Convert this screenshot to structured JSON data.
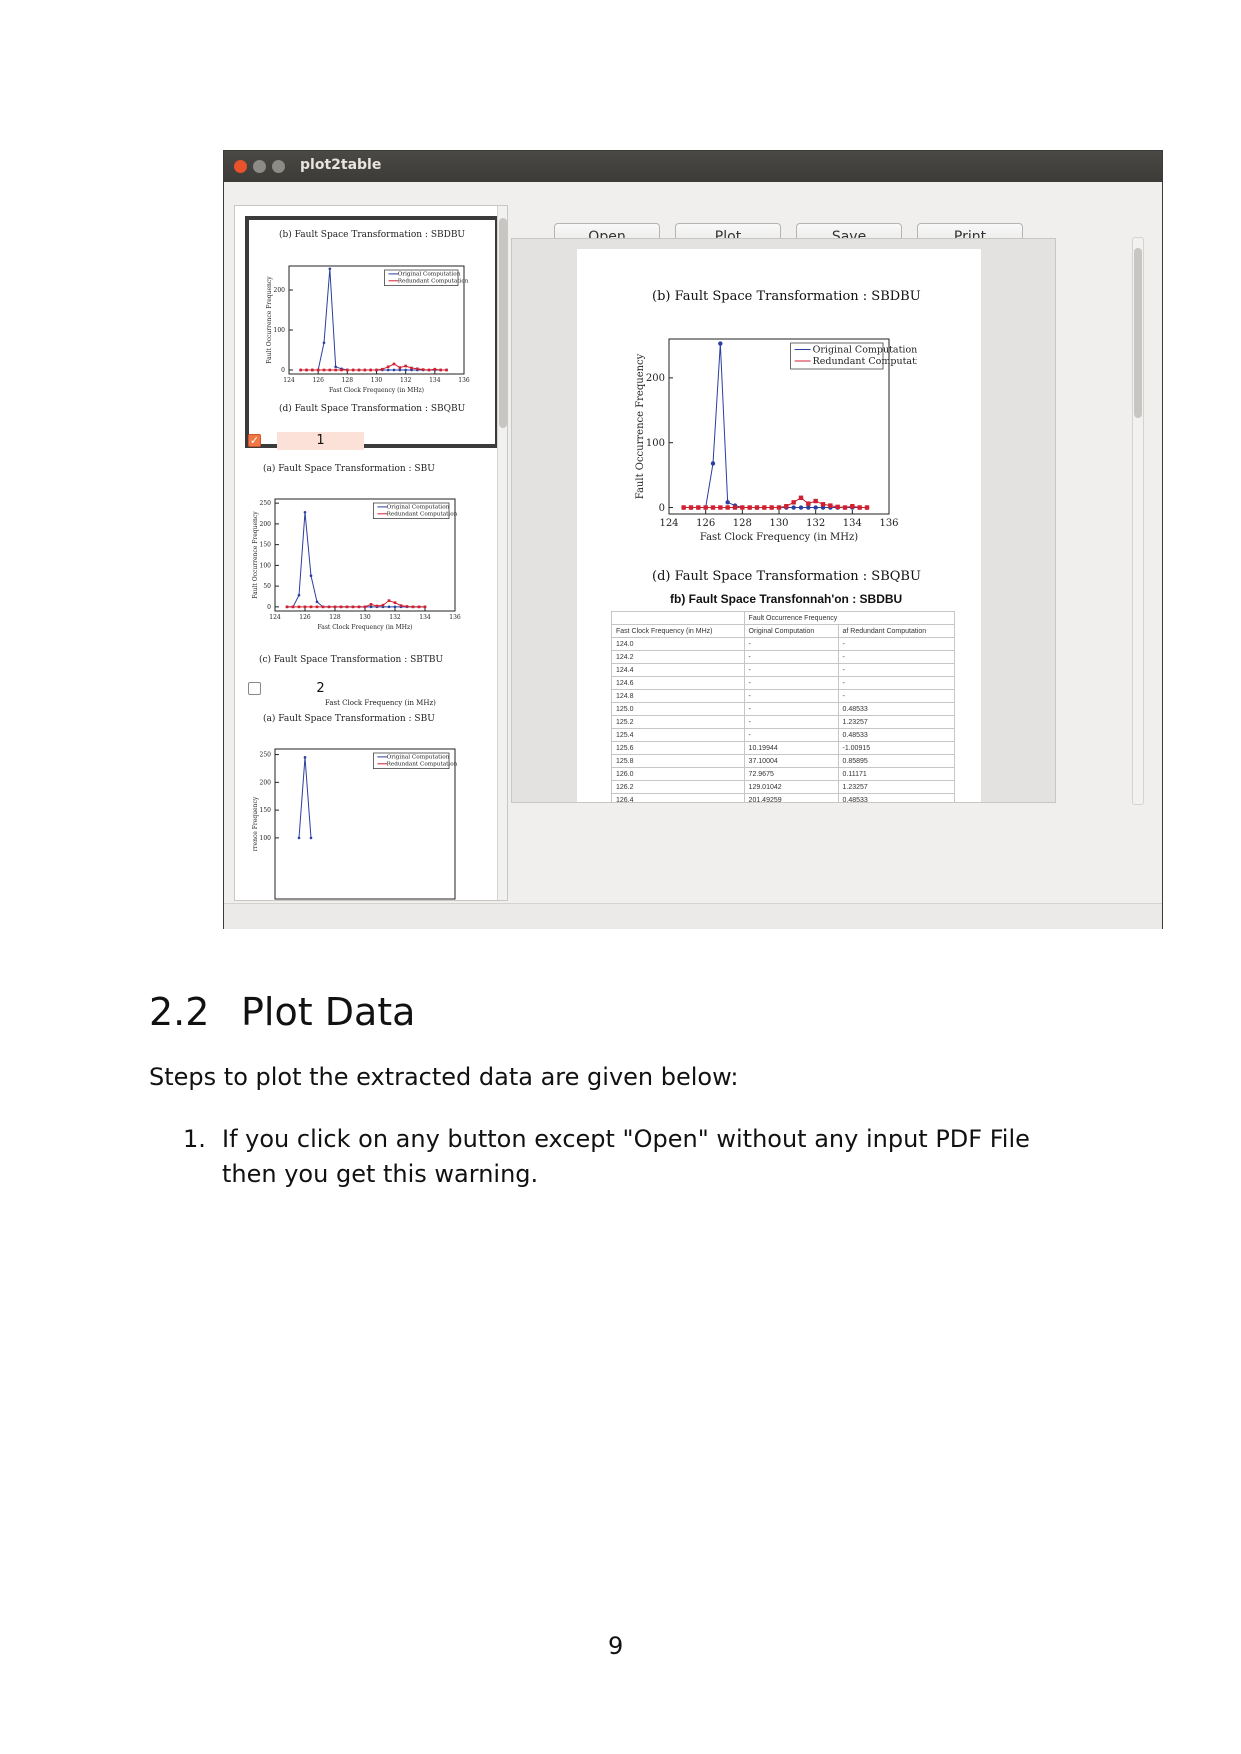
{
  "window": {
    "title": "plot2table",
    "buttons": {
      "open": "Open",
      "plot": "Plot",
      "save": "Save",
      "print": "Print"
    }
  },
  "left_panel": {
    "page1_top_caption": "(b) Fault Space Transformation : SBDBU",
    "page1_bottom_caption": "(d) Fault Space Transformation : SBQBU",
    "item1": {
      "checked": true,
      "number": "1"
    },
    "item1_caption_top": "(a) Fault Space Transformation : SBU",
    "item1_caption_bottom": "(c) Fault Space Transformation : SBTBU",
    "item2": {
      "checked": false,
      "number": "2"
    },
    "item2_cut_text": "Fast Clock Frequency (in MHz)",
    "item2_caption_top": "(a) Fault Space Transformation : SBU"
  },
  "preview": {
    "caption_top": "(b) Fault Space Transformation : SBDBU",
    "caption_bottom": "(d) Fault Space Transformation : SBQBU",
    "table_title": "fb) Fault Space Transfonnah'on : SBDBU",
    "table_header_group": "Fault Occurrence Frequency",
    "table_headers": [
      "Fast Clock Frequency (in MHz)",
      "Original Computation",
      "af Redundant Computation"
    ],
    "table_rows": [
      [
        "124.0",
        "-",
        "-"
      ],
      [
        "124.2",
        "-",
        "-"
      ],
      [
        "124.4",
        "-",
        "-"
      ],
      [
        "124.6",
        "-",
        "-"
      ],
      [
        "124.8",
        "-",
        "-"
      ],
      [
        "125.0",
        "-",
        "0.48533"
      ],
      [
        "125.2",
        "-",
        "1.23257"
      ],
      [
        "125.4",
        "-",
        "0.48533"
      ],
      [
        "125.6",
        "10.19944",
        "-1.00915"
      ],
      [
        "125.8",
        "37.10004",
        "0.85895"
      ],
      [
        "126.0",
        "72.9675",
        "0.11171"
      ],
      [
        "126.2",
        "129.01042",
        "1.23257"
      ],
      [
        "126.4",
        "201.49259",
        "0.48533"
      ]
    ]
  },
  "chart_data": [
    {
      "type": "line",
      "xlabel": "Fast Clock Frequency (in MHz)",
      "ylabel": "Fault Occurrence Frequency",
      "xlim": [
        124,
        136
      ],
      "ylim": [
        -10,
        260
      ],
      "x_ticks": [
        "124",
        "126",
        "128",
        "130",
        "132",
        "134",
        "136"
      ],
      "y_ticks": [
        "0",
        "100",
        "200"
      ],
      "legend_position": "top-right",
      "series": [
        {
          "name": "Original Computation",
          "color": "#2b3f9e",
          "x": [
            124.8,
            125.2,
            125.6,
            126.0,
            126.4,
            126.8,
            127.2,
            127.6,
            128.0,
            128.4,
            128.8,
            129.2,
            129.6,
            130.0,
            130.4,
            130.8,
            131.2,
            131.6,
            132.0,
            132.4,
            132.8,
            133.2,
            133.6,
            134.0,
            134.4,
            134.8
          ],
          "y": [
            0,
            0,
            0,
            0,
            68,
            253,
            8,
            3,
            0,
            0,
            0,
            0,
            0,
            0,
            0,
            0,
            0,
            0,
            0,
            0,
            0,
            0,
            0,
            0,
            0,
            0
          ]
        },
        {
          "name": "Redundant Computation",
          "color": "#d0202f",
          "x": [
            124.8,
            125.2,
            125.6,
            126.0,
            126.4,
            126.8,
            127.2,
            127.6,
            128.0,
            128.4,
            128.8,
            129.2,
            129.6,
            130.0,
            130.4,
            130.8,
            131.2,
            131.6,
            132.0,
            132.4,
            132.8,
            133.2,
            133.6,
            134.0,
            134.4,
            134.8
          ],
          "y": [
            0,
            0,
            0,
            0,
            0,
            0,
            0,
            0,
            0,
            0,
            0,
            0,
            0,
            0,
            2,
            8,
            15,
            6,
            10,
            5,
            3,
            1,
            0,
            2,
            0,
            0
          ]
        }
      ]
    },
    {
      "type": "line",
      "xlabel": "Fast Clock Frequency (in MHz)",
      "ylabel": "Fault Occurrence Frequency",
      "xlim": [
        124,
        136
      ],
      "ylim": [
        -10,
        260
      ],
      "x_ticks": [
        "124",
        "126",
        "128",
        "130",
        "132",
        "134",
        "136"
      ],
      "y_ticks": [
        "0",
        "100",
        "200"
      ],
      "legend_position": "top-right",
      "series": [
        {
          "name": "Original Computation",
          "color": "#2b3f9e",
          "x": [
            124.8,
            125.2,
            125.6,
            126.0,
            126.4,
            126.8,
            127.2,
            127.6,
            128.0,
            128.4,
            128.8,
            129.2,
            129.6,
            130.0,
            130.4,
            130.8,
            131.2,
            131.6,
            132.0,
            132.4,
            132.8,
            133.2,
            133.6,
            134.0,
            134.4,
            134.8
          ],
          "y": [
            0,
            0,
            0,
            0,
            68,
            253,
            8,
            3,
            0,
            0,
            0,
            0,
            0,
            0,
            0,
            0,
            0,
            0,
            0,
            0,
            0,
            0,
            0,
            0,
            0,
            0
          ]
        },
        {
          "name": "Redundant Computation",
          "color": "#d0202f",
          "x": [
            124.8,
            125.2,
            125.6,
            126.0,
            126.4,
            126.8,
            127.2,
            127.6,
            128.0,
            128.4,
            128.8,
            129.2,
            129.6,
            130.0,
            130.4,
            130.8,
            131.2,
            131.6,
            132.0,
            132.4,
            132.8,
            133.2,
            133.6,
            134.0,
            134.4,
            134.8
          ],
          "y": [
            0,
            0,
            0,
            0,
            0,
            0,
            0,
            0,
            0,
            0,
            0,
            0,
            0,
            0,
            2,
            8,
            15,
            6,
            10,
            5,
            3,
            1,
            0,
            2,
            0,
            0
          ]
        }
      ]
    },
    {
      "type": "line",
      "xlabel": "Fast Clock Frequency (in MHz)",
      "ylabel": "Fault Occurrence Frequency",
      "xlim": [
        124,
        136
      ],
      "ylim": [
        -10,
        260
      ],
      "x_ticks": [
        "124",
        "126",
        "128",
        "130",
        "132",
        "134",
        "136"
      ],
      "y_ticks": [
        "0",
        "50",
        "100",
        "150",
        "200",
        "250"
      ],
      "legend_position": "top-right",
      "series": [
        {
          "name": "Original Computation",
          "color": "#2b3f9e",
          "x": [
            124.8,
            125.2,
            125.6,
            126.0,
            126.4,
            126.8,
            127.2,
            127.6,
            128.0,
            128.4,
            128.8,
            129.2,
            129.6,
            130.0,
            130.4,
            130.8,
            131.2,
            131.6,
            132.0,
            132.4,
            132.8,
            133.2,
            133.6,
            134.0
          ],
          "y": [
            0,
            0,
            28,
            228,
            75,
            12,
            0,
            0,
            0,
            0,
            0,
            0,
            0,
            0,
            0,
            0,
            0,
            0,
            0,
            0,
            0,
            0,
            0,
            0
          ]
        },
        {
          "name": "Redundant Computation",
          "color": "#d0202f",
          "x": [
            124.8,
            125.2,
            125.6,
            126.0,
            126.4,
            126.8,
            127.2,
            127.6,
            128.0,
            128.4,
            128.8,
            129.2,
            129.6,
            130.0,
            130.4,
            130.8,
            131.2,
            131.6,
            132.0,
            132.4,
            132.8,
            133.2,
            133.6,
            134.0
          ],
          "y": [
            0,
            0,
            0,
            0,
            0,
            0,
            0,
            0,
            0,
            0,
            0,
            0,
            0,
            0,
            6,
            2,
            4,
            15,
            10,
            3,
            1,
            0,
            0,
            0
          ]
        }
      ]
    },
    {
      "type": "line",
      "xlabel": "",
      "ylabel": "rrence Frequency",
      "xlim": [
        124,
        136
      ],
      "ylim": [
        -10,
        260
      ],
      "x_ticks": [],
      "y_ticks": [
        "100",
        "150",
        "200",
        "250"
      ],
      "legend_position": "top-right",
      "series": [
        {
          "name": "Original Computation",
          "color": "#2b3f9e",
          "x": [
            125.6,
            126.0,
            126.4
          ],
          "y": [
            100,
            245,
            100
          ]
        },
        {
          "name": "Redundant Computation",
          "color": "#d0202f",
          "x": [],
          "y": []
        }
      ]
    }
  ],
  "document": {
    "section_number": "2.2",
    "section_title": "Plot Data",
    "intro": "Steps to plot the extracted data are given below:",
    "step1_number": "1.",
    "step1_text": "If you click on any button except \"Open\" without any input PDF File then you get this warning.",
    "page_number": "9"
  }
}
